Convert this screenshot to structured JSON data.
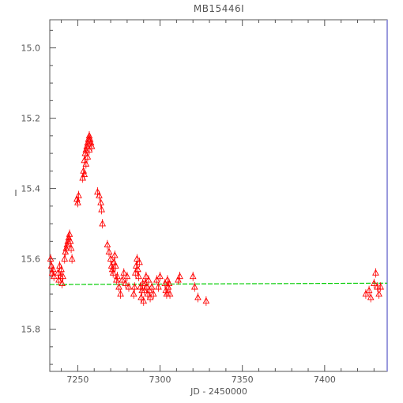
{
  "chart_data": {
    "type": "scatter",
    "title": "MB15446I",
    "xlabel": "JD - 2450000",
    "ylabel": "I",
    "xlim": [
      7233,
      7438
    ],
    "ylim": [
      15.92,
      14.92
    ],
    "y_inverted": true,
    "x_ticks": [
      7250,
      7300,
      7350,
      7400
    ],
    "y_ticks": [
      15.0,
      15.2,
      15.4,
      15.6,
      15.8
    ],
    "x_tick_labels": [
      "7250",
      "7300",
      "7350",
      "7400"
    ],
    "y_tick_labels": [
      "15.0",
      "15.2",
      "15.4",
      "15.6",
      "15.8"
    ],
    "grid": false,
    "marker": "triangle",
    "colors": {
      "points": "#ff0000",
      "baseline": "#00cc00",
      "axes": "#555555",
      "right_axis": "#9999dd"
    },
    "series": [
      {
        "values": [
          [
            7233.5,
            15.6
          ],
          [
            7234,
            15.62
          ],
          [
            7234.5,
            15.64
          ],
          [
            7235,
            15.63
          ],
          [
            7235.5,
            15.65
          ],
          [
            7238,
            15.64
          ],
          [
            7238.5,
            15.66
          ],
          [
            7239,
            15.62
          ],
          [
            7239.5,
            15.65
          ],
          [
            7240,
            15.63
          ],
          [
            7240.5,
            15.67
          ],
          [
            7241,
            15.65
          ],
          [
            7242,
            15.6
          ],
          [
            7242.5,
            15.58
          ],
          [
            7243,
            15.57
          ],
          [
            7243.5,
            15.56
          ],
          [
            7244,
            15.55
          ],
          [
            7244.5,
            15.54
          ],
          [
            7245,
            15.53
          ],
          [
            7245.5,
            15.55
          ],
          [
            7246,
            15.57
          ],
          [
            7246.5,
            15.6
          ],
          [
            7249.5,
            15.43
          ],
          [
            7250,
            15.44
          ],
          [
            7250.5,
            15.42
          ],
          [
            7253,
            15.37
          ],
          [
            7253.5,
            15.35
          ],
          [
            7254,
            15.32
          ],
          [
            7254.5,
            15.3
          ],
          [
            7255,
            15.29
          ],
          [
            7255.5,
            15.28
          ],
          [
            7256,
            15.27
          ],
          [
            7256.5,
            15.26
          ],
          [
            7257,
            15.25
          ],
          [
            7257.5,
            15.26
          ],
          [
            7258,
            15.27
          ],
          [
            7258.5,
            15.28
          ],
          [
            7254,
            15.36
          ],
          [
            7255,
            15.33
          ],
          [
            7256,
            15.31
          ],
          [
            7257,
            15.29
          ],
          [
            7262,
            15.41
          ],
          [
            7263,
            15.42
          ],
          [
            7264,
            15.44
          ],
          [
            7264.5,
            15.46
          ],
          [
            7265,
            15.5
          ],
          [
            7268,
            15.56
          ],
          [
            7269,
            15.58
          ],
          [
            7270,
            15.6
          ],
          [
            7270.5,
            15.62
          ],
          [
            7271,
            15.63
          ],
          [
            7271.5,
            15.64
          ],
          [
            7272,
            15.61
          ],
          [
            7272.5,
            15.59
          ],
          [
            7273,
            15.62
          ],
          [
            7273.5,
            15.66
          ],
          [
            7274,
            15.65
          ],
          [
            7275,
            15.68
          ],
          [
            7276,
            15.7
          ],
          [
            7277,
            15.66
          ],
          [
            7278,
            15.64
          ],
          [
            7279,
            15.67
          ],
          [
            7280,
            15.65
          ],
          [
            7281,
            15.68
          ],
          [
            7284,
            15.7
          ],
          [
            7284.5,
            15.68
          ],
          [
            7285,
            15.64
          ],
          [
            7285.5,
            15.62
          ],
          [
            7286,
            15.6
          ],
          [
            7286.5,
            15.63
          ],
          [
            7287,
            15.65
          ],
          [
            7287.5,
            15.61
          ],
          [
            7288,
            15.68
          ],
          [
            7288.5,
            15.71
          ],
          [
            7289,
            15.69
          ],
          [
            7289.5,
            15.67
          ],
          [
            7290,
            15.72
          ],
          [
            7290.5,
            15.69
          ],
          [
            7291,
            15.67
          ],
          [
            7291.5,
            15.65
          ],
          [
            7292,
            15.68
          ],
          [
            7292.5,
            15.7
          ],
          [
            7293,
            15.66
          ],
          [
            7293.5,
            15.69
          ],
          [
            7294,
            15.71
          ],
          [
            7295,
            15.68
          ],
          [
            7296,
            15.7
          ],
          [
            7298,
            15.66
          ],
          [
            7299,
            15.68
          ],
          [
            7300,
            15.65
          ],
          [
            7303,
            15.67
          ],
          [
            7303.5,
            15.69
          ],
          [
            7304,
            15.7
          ],
          [
            7304.5,
            15.66
          ],
          [
            7305,
            15.68
          ],
          [
            7305.5,
            15.67
          ],
          [
            7306,
            15.7
          ],
          [
            7311,
            15.66
          ],
          [
            7312,
            15.65
          ],
          [
            7320,
            15.65
          ],
          [
            7321,
            15.68
          ],
          [
            7323,
            15.71
          ],
          [
            7328,
            15.72
          ],
          [
            7425,
            15.7
          ],
          [
            7427,
            15.69
          ],
          [
            7428,
            15.71
          ],
          [
            7430,
            15.67
          ],
          [
            7431,
            15.64
          ],
          [
            7432,
            15.68
          ],
          [
            7433,
            15.7
          ],
          [
            7434,
            15.68
          ]
        ]
      }
    ],
    "baseline": {
      "type": "line",
      "y_start": 15.673,
      "y_end": 15.669
    }
  }
}
